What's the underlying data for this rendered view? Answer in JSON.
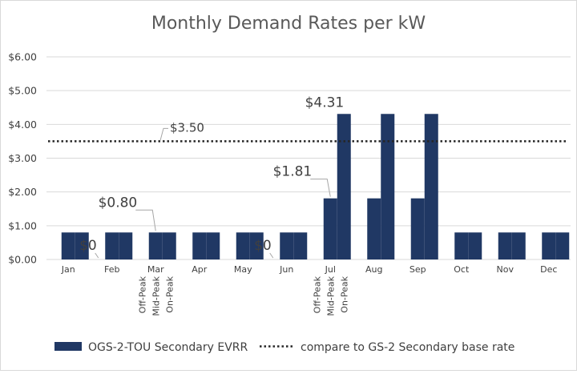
{
  "chart_data": {
    "type": "bar",
    "title": "Monthly Demand Rates per kW",
    "categories": [
      "Jan",
      "Feb",
      "Mar",
      "Apr",
      "May",
      "Jun",
      "Jul",
      "Aug",
      "Sep",
      "Oct",
      "Nov",
      "Dec"
    ],
    "period_labels": [
      "Off-Peak",
      "Mid-Peak",
      "On-Peak"
    ],
    "series": [
      {
        "name": "Off-Peak",
        "values": [
          0,
          0,
          0,
          0,
          0,
          0,
          0,
          0,
          0,
          0,
          0,
          0
        ]
      },
      {
        "name": "Mid-Peak",
        "values": [
          0.8,
          0.8,
          0.8,
          0.8,
          0.8,
          0.8,
          1.81,
          1.81,
          1.81,
          0.8,
          0.8,
          0.8
        ]
      },
      {
        "name": "On-Peak",
        "values": [
          0.8,
          0.8,
          0.8,
          0.8,
          0.8,
          0.8,
          4.31,
          4.31,
          4.31,
          0.8,
          0.8,
          0.8
        ]
      }
    ],
    "reference_line": {
      "name": "compare to GS-2 Secondary base rate",
      "value": 3.5,
      "label": "$3.50"
    },
    "y_ticks": [
      "$0.00",
      "$1.00",
      "$2.00",
      "$3.00",
      "$4.00",
      "$5.00",
      "$6.00"
    ],
    "ylim": [
      0,
      6
    ],
    "grid": true,
    "legend_position": "bottom",
    "legend": {
      "bars": "OGS-2-TOU Secondary EVRR",
      "line": "compare to GS-2 Secondary base rate"
    },
    "annotations": [
      {
        "text": "$0",
        "category": "Feb",
        "series": "Off-Peak"
      },
      {
        "text": "$0.80",
        "category": "Mar",
        "series": "Mid-Peak"
      },
      {
        "text": "$0",
        "category": "Jun",
        "series": "Off-Peak"
      },
      {
        "text": "$1.81",
        "category": "Jul",
        "series": "Mid-Peak"
      },
      {
        "text": "$4.31",
        "category": "Jul",
        "series": "On-Peak"
      }
    ],
    "colors": {
      "bar": "#203864",
      "grid": "#d9d9d9",
      "text": "#404040",
      "title": "#595959",
      "reference_line": "#262626"
    }
  }
}
